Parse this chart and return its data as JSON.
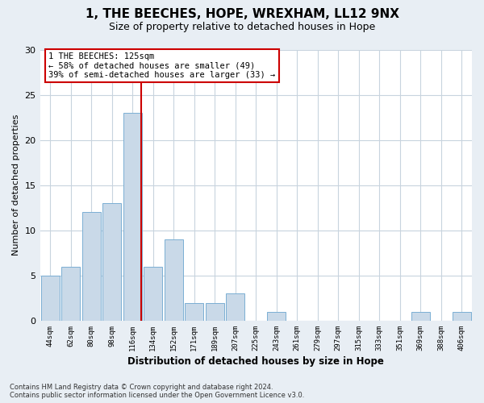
{
  "title": "1, THE BEECHES, HOPE, WREXHAM, LL12 9NX",
  "subtitle": "Size of property relative to detached houses in Hope",
  "xlabel": "Distribution of detached houses by size in Hope",
  "ylabel": "Number of detached properties",
  "bin_labels": [
    "44sqm",
    "62sqm",
    "80sqm",
    "98sqm",
    "116sqm",
    "134sqm",
    "152sqm",
    "171sqm",
    "189sqm",
    "207sqm",
    "225sqm",
    "243sqm",
    "261sqm",
    "279sqm",
    "297sqm",
    "315sqm",
    "333sqm",
    "351sqm",
    "369sqm",
    "388sqm",
    "406sqm"
  ],
  "bar_heights": [
    5,
    6,
    12,
    13,
    23,
    6,
    9,
    2,
    2,
    3,
    0,
    1,
    0,
    0,
    0,
    0,
    0,
    0,
    1,
    0,
    1
  ],
  "bar_color": "#c9d9e8",
  "bar_edgecolor": "#7bafd4",
  "marker_line_color": "#cc0000",
  "annotation_line1": "1 THE BEECHES: 125sqm",
  "annotation_line2": "← 58% of detached houses are smaller (49)",
  "annotation_line3": "39% of semi-detached houses are larger (33) →",
  "annotation_box_color": "#cc0000",
  "ylim": [
    0,
    30
  ],
  "yticks": [
    0,
    5,
    10,
    15,
    20,
    25,
    30
  ],
  "footer_line1": "Contains HM Land Registry data © Crown copyright and database right 2024.",
  "footer_line2": "Contains public sector information licensed under the Open Government Licence v3.0.",
  "background_color": "#e8eef4",
  "plot_background": "#ffffff",
  "grid_color": "#c8d4de"
}
